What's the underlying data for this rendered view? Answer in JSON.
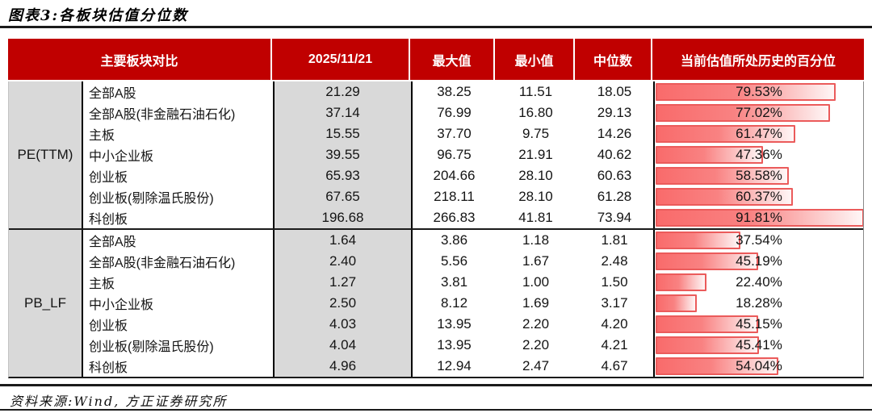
{
  "page": {
    "title": "图表3:各板块估值分位数",
    "source": "资料来源:Wind, 方正证券研究所"
  },
  "chart_data": {
    "type": "table",
    "title": "图表3:各板块估值分位数",
    "columns": [
      "主要板块对比",
      "2025/11/21",
      "最大值",
      "最小值",
      "中位数",
      "当前估值所处历史的百分位"
    ],
    "bar_column": "当前估值所处历史的百分位",
    "bar_scale_max": 91.81,
    "sections": [
      {
        "group": "PE(TTM)",
        "rows": [
          {
            "name": "全部A股",
            "values": [
              "21.29",
              "38.25",
              "11.51",
              "18.05"
            ],
            "percentile": "79.53%",
            "percentile_value": 79.53
          },
          {
            "name": "全部A股(非金融石油石化)",
            "values": [
              "37.14",
              "76.99",
              "16.80",
              "29.13"
            ],
            "percentile": "77.02%",
            "percentile_value": 77.02
          },
          {
            "name": "主板",
            "values": [
              "15.55",
              "37.70",
              "9.75",
              "14.26"
            ],
            "percentile": "61.47%",
            "percentile_value": 61.47
          },
          {
            "name": "中小企业板",
            "values": [
              "39.55",
              "96.75",
              "21.91",
              "40.62"
            ],
            "percentile": "47.36%",
            "percentile_value": 47.36
          },
          {
            "name": "创业板",
            "values": [
              "65.93",
              "204.66",
              "28.10",
              "60.63"
            ],
            "percentile": "58.58%",
            "percentile_value": 58.58
          },
          {
            "name": "创业板(剔除温氏股份)",
            "values": [
              "67.65",
              "218.11",
              "28.10",
              "61.28"
            ],
            "percentile": "60.37%",
            "percentile_value": 60.37
          },
          {
            "name": "科创板",
            "values": [
              "196.68",
              "266.83",
              "41.81",
              "73.94"
            ],
            "percentile": "91.81%",
            "percentile_value": 91.81
          }
        ]
      },
      {
        "group": "PB_LF",
        "rows": [
          {
            "name": "全部A股",
            "values": [
              "1.64",
              "3.86",
              "1.18",
              "1.81"
            ],
            "percentile": "37.54%",
            "percentile_value": 37.54
          },
          {
            "name": "全部A股(非金融石油石化)",
            "values": [
              "2.40",
              "5.56",
              "1.67",
              "2.48"
            ],
            "percentile": "45.19%",
            "percentile_value": 45.19
          },
          {
            "name": "主板",
            "values": [
              "1.27",
              "3.81",
              "1.00",
              "1.50"
            ],
            "percentile": "22.40%",
            "percentile_value": 22.4
          },
          {
            "name": "中小企业板",
            "values": [
              "2.50",
              "8.12",
              "1.69",
              "3.17"
            ],
            "percentile": "18.28%",
            "percentile_value": 18.28
          },
          {
            "name": "创业板",
            "values": [
              "4.03",
              "13.95",
              "2.20",
              "4.20"
            ],
            "percentile": "45.15%",
            "percentile_value": 45.15
          },
          {
            "name": "创业板(剔除温氏股份)",
            "values": [
              "4.04",
              "13.95",
              "2.20",
              "4.21"
            ],
            "percentile": "45.41%",
            "percentile_value": 45.41
          },
          {
            "name": "科创板",
            "values": [
              "4.96",
              "12.94",
              "2.47",
              "4.67"
            ],
            "percentile": "54.04%",
            "percentile_value": 54.04
          }
        ]
      }
    ],
    "colors": {
      "header_bg": "#C00000",
      "header_text": "#FFFFFF",
      "gray_cell": "#D9D9D9",
      "bar_border": "#EB5B5B",
      "bar_fill_left": "#F96B6B",
      "bar_fill_right": "#FEF6F6",
      "divider": "#1B1B1B"
    }
  }
}
